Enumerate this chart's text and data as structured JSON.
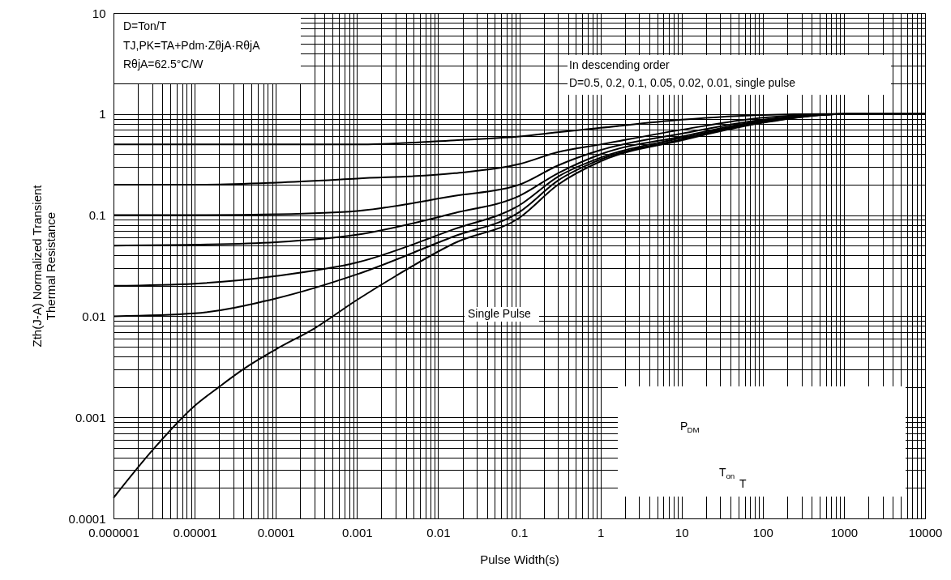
{
  "chart_data": {
    "type": "line",
    "xlabel": "Pulse Width(s)",
    "ylabel": "Zth(J-A) Normalized Transient\nThermal Resistance",
    "x": [
      1e-06,
      1e-05,
      0.0001,
      0.001,
      0.016,
      0.1,
      0.3,
      1,
      10,
      100,
      1000,
      10000
    ],
    "series": [
      {
        "color": "#000000",
        "values": [
          0.5,
          0.5,
          0.5,
          0.5,
          0.55,
          0.6,
          0.66,
          0.73,
          0.88,
          0.98,
          1,
          1
        ]
      },
      {
        "color": "#000000",
        "values": [
          0.2,
          0.2,
          0.21,
          0.23,
          0.26,
          0.32,
          0.42,
          0.5,
          0.7,
          0.92,
          1,
          1
        ]
      },
      {
        "color": "#000000",
        "values": [
          0.1,
          0.1,
          0.102,
          0.11,
          0.155,
          0.2,
          0.31,
          0.44,
          0.64,
          0.88,
          1,
          1
        ]
      },
      {
        "color": "#000000",
        "values": [
          0.05,
          0.051,
          0.054,
          0.064,
          0.105,
          0.155,
          0.26,
          0.4,
          0.6,
          0.86,
          1,
          1
        ]
      },
      {
        "color": "#000000",
        "values": [
          0.02,
          0.021,
          0.025,
          0.034,
          0.073,
          0.125,
          0.24,
          0.37,
          0.58,
          0.84,
          1,
          1
        ]
      },
      {
        "color": "#000000",
        "values": [
          0.01,
          0.0107,
          0.015,
          0.026,
          0.062,
          0.107,
          0.22,
          0.355,
          0.56,
          0.83,
          1,
          1
        ]
      },
      {
        "color": "#000000",
        "x": [
          1e-06,
          3e-06,
          1e-05,
          2e-05,
          4e-05,
          0.0001,
          0.0003,
          0.001,
          0.003,
          0.016,
          0.1,
          0.3,
          1,
          10,
          100,
          1000,
          10000
        ],
        "values": [
          0.00016,
          0.00047,
          0.0013,
          0.002,
          0.003,
          0.0047,
          0.0076,
          0.0145,
          0.025,
          0.053,
          0.094,
          0.2,
          0.34,
          0.55,
          0.82,
          1,
          1
        ]
      }
    ],
    "xlim": [
      1e-06,
      10000
    ],
    "ylim": [
      0.0001,
      10
    ],
    "xticks": [
      {
        "value": 1e-06,
        "label": "0.000001"
      },
      {
        "value": 1e-05,
        "label": "0.00001"
      },
      0.0001,
      0.001,
      0.01,
      0.1,
      1,
      10,
      100,
      1000,
      10000
    ],
    "yticks": [
      0.0001,
      0.001,
      0.01,
      0.1,
      1,
      10
    ],
    "log": "xy",
    "grid": true,
    "marker": "none",
    "line_style": "solid",
    "annotations": [
      "D=Ton/T",
      "TJ,PK=TA+Pdm·ZθjA·RθjA",
      "RθjA=62.5°C/W",
      "In descending order",
      "D=0.5, 0.2, 0.1, 0.05, 0.02, 0.01, single pulse",
      "Single Pulse",
      "P$_{DM}$",
      "T$_{on}$",
      "T"
    ]
  }
}
